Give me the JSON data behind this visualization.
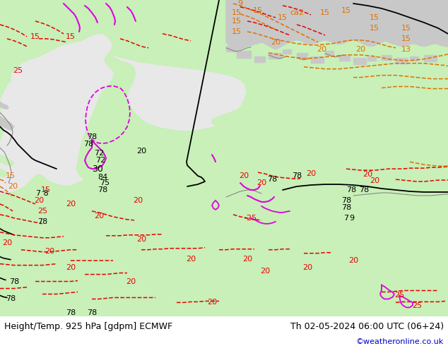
{
  "title_left": "Height/Temp. 925 hPa [gdpm] ECMWF",
  "title_right": "Th 02-05-2024 06:00 UTC (06+24)",
  "credit": "©weatheronline.co.uk",
  "bg_color": "#ffffff",
  "land_green": "#c8f0b8",
  "land_gray": "#c8c8c8",
  "ocean_color": "#e8e8e8",
  "figsize": [
    6.34,
    4.9
  ],
  "dpi": 100,
  "bottom_text_color": "#000000",
  "credit_color": "#0000cc",
  "font_size_titles": 9.0,
  "font_size_credit": 8.0
}
